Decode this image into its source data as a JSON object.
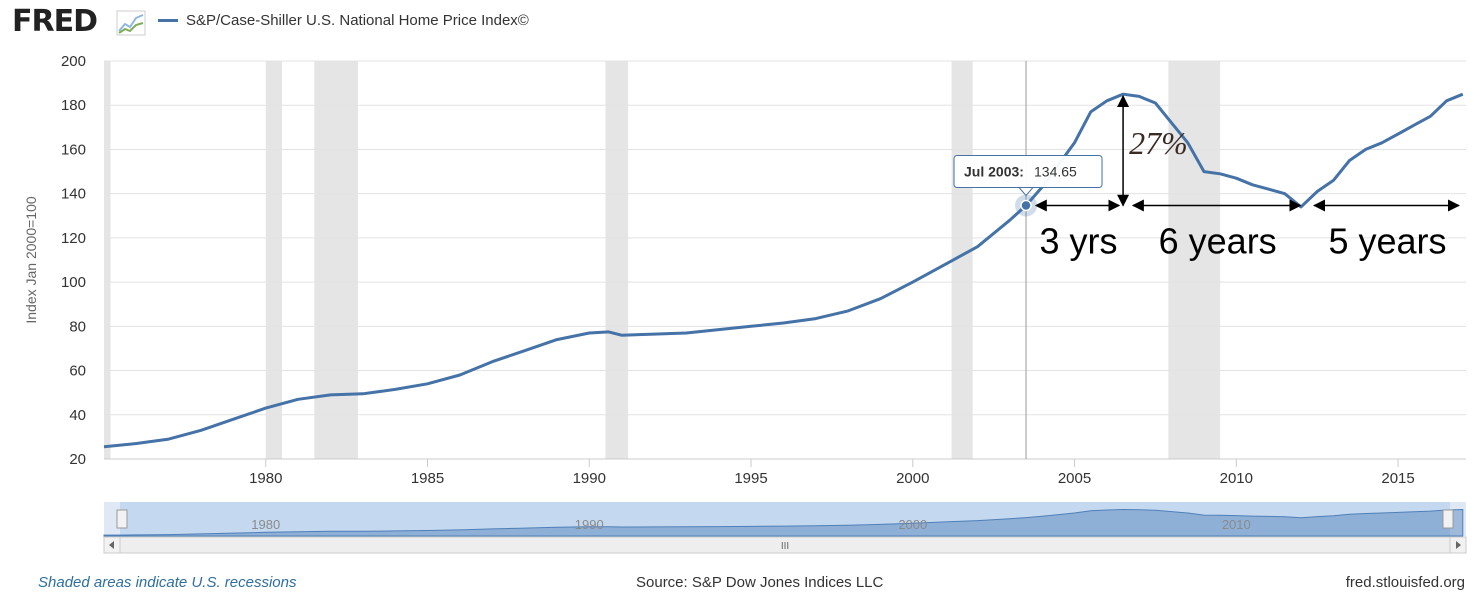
{
  "brand": {
    "logo_text": "FRED",
    "logo_icon": "line-chart-icon"
  },
  "colors": {
    "line": "#4572a7",
    "recession": "#e5e5e5",
    "navigator_fill": "#b8d1ec",
    "navigator_line": "#4f7fb9"
  },
  "chart_data": {
    "type": "line",
    "title": "",
    "ylabel": "Index Jan 2000=100",
    "xlabel": "",
    "ylim": [
      20,
      200
    ],
    "xlim": [
      1975.0,
      2017.1
    ],
    "yticks": [
      20,
      40,
      60,
      80,
      100,
      120,
      140,
      160,
      180,
      200
    ],
    "xticks": [
      1980,
      1985,
      1990,
      1995,
      2000,
      2005,
      2010,
      2015
    ],
    "legend_position": "top-left",
    "grid": true,
    "series": [
      {
        "name": "S&P/Case-Shiller U.S. National Home Price Index©",
        "x": [
          1975.0,
          1976.0,
          1977.0,
          1978.0,
          1979.0,
          1980.0,
          1981.0,
          1982.0,
          1983.0,
          1984.0,
          1985.0,
          1986.0,
          1987.0,
          1988.0,
          1989.0,
          1990.0,
          1990.6,
          1991.0,
          1992.0,
          1993.0,
          1994.0,
          1995.0,
          1996.0,
          1997.0,
          1998.0,
          1999.0,
          2000.0,
          2001.0,
          2002.0,
          2003.0,
          2003.5,
          2004.0,
          2005.0,
          2005.5,
          2006.0,
          2006.5,
          2007.0,
          2007.5,
          2008.0,
          2008.5,
          2009.0,
          2009.5,
          2010.0,
          2010.5,
          2011.0,
          2011.5,
          2012.0,
          2012.5,
          2013.0,
          2013.5,
          2014.0,
          2014.5,
          2015.0,
          2015.5,
          2016.0,
          2016.5,
          2017.0
        ],
        "y": [
          25.5,
          27,
          29,
          33,
          38,
          43,
          47,
          49,
          49.5,
          51.5,
          54,
          58,
          64,
          69,
          74,
          77,
          77.5,
          76,
          76.5,
          77,
          78.5,
          80,
          81.5,
          83.5,
          87,
          92.5,
          100,
          108,
          116,
          128,
          134.65,
          143,
          163,
          177,
          182,
          185,
          184,
          181,
          172,
          163,
          150,
          149,
          147,
          144,
          142,
          140,
          134,
          141,
          146,
          155,
          160,
          163,
          167,
          171,
          175,
          182,
          185
        ]
      }
    ],
    "recessions": [
      [
        1975.0,
        1975.2
      ],
      [
        1980.0,
        1980.5
      ],
      [
        1981.5,
        1982.85
      ],
      [
        1990.5,
        1991.2
      ],
      [
        2001.2,
        2001.85
      ],
      [
        2007.9,
        2009.5
      ]
    ],
    "tooltip": {
      "label": "Jul 2003:",
      "value": "134.65",
      "x": 2003.5,
      "y": 134.65
    },
    "annotations": {
      "percent_label": "27%",
      "spans": [
        {
          "label": "3 yrs",
          "from": 2003.5,
          "to": 2006.5,
          "at_y": 126
        },
        {
          "label": "6 years",
          "from": 2006.5,
          "to": 2012.1,
          "at_y": 126
        },
        {
          "label": "5 years",
          "from": 2012.1,
          "to": 2017.0,
          "at_y": 126
        }
      ],
      "vertical_arrow": {
        "x": 2006.5,
        "from": 134.65,
        "to": 185
      }
    },
    "navigator": {
      "tick_labels": [
        "1980",
        "1990",
        "2000",
        "2010"
      ],
      "scrollbar_grip": "III"
    }
  },
  "footer": {
    "left": "Shaded areas indicate U.S. recessions",
    "mid": "Source: S&P Dow Jones Indices LLC",
    "right": "fred.stlouisfed.org"
  }
}
